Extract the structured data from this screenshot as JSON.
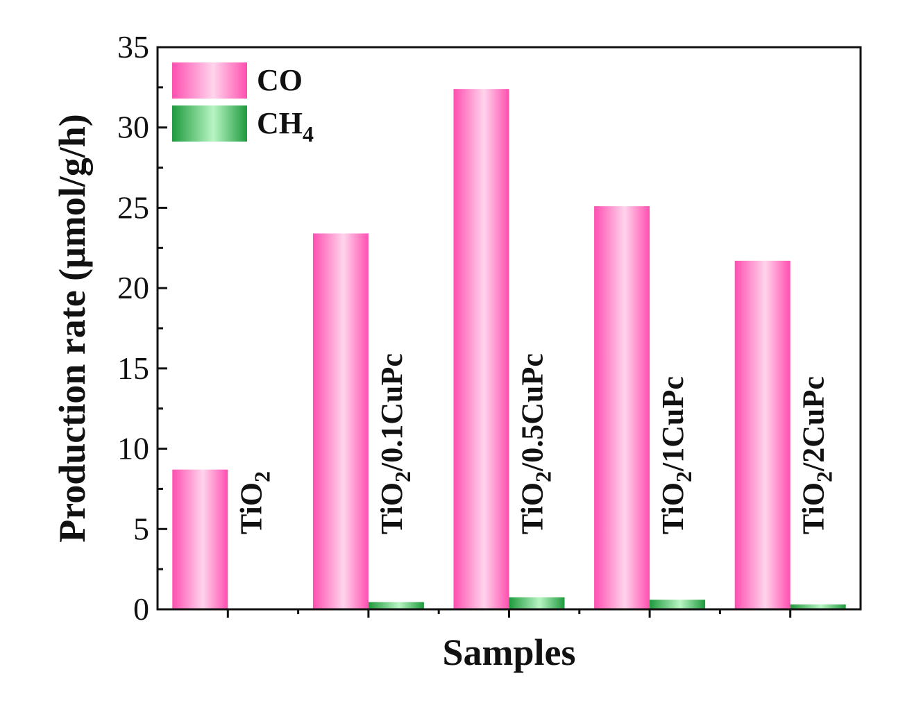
{
  "chart_data": {
    "type": "bar",
    "categories": [
      "TiO2",
      "TiO2/0.1CuPc",
      "TiO2/0.5CuPc",
      "TiO2/1CuPc",
      "TiO2/2CuPc"
    ],
    "category_labels": [
      {
        "main": "TiO",
        "sub": "2",
        "rest": ""
      },
      {
        "main": "TiO",
        "sub": "2",
        "rest": "/0.1CuPc"
      },
      {
        "main": "TiO",
        "sub": "2",
        "rest": "/0.5CuPc"
      },
      {
        "main": "TiO",
        "sub": "2",
        "rest": "/1CuPc"
      },
      {
        "main": "TiO",
        "sub": "2",
        "rest": "/2CuPc"
      }
    ],
    "series": [
      {
        "name": "CO",
        "label_main": "CO",
        "label_sub": "",
        "values": [
          8.7,
          23.4,
          32.4,
          25.1,
          21.7
        ],
        "color": "#ff4fb0",
        "highlight": "#ffd4ec"
      },
      {
        "name": "CH4",
        "label_main": "CH",
        "label_sub": "4",
        "values": [
          0.0,
          0.45,
          0.75,
          0.6,
          0.3
        ],
        "color": "#1e9a3c",
        "highlight": "#b8f5c4"
      }
    ],
    "xlabel": "Samples",
    "ylabel": "Production rate (μmol/g/h)",
    "ylim": [
      0,
      35
    ],
    "yticks": [
      0,
      5,
      10,
      15,
      20,
      25,
      30,
      35
    ],
    "legend_position": "top-left",
    "grid": false
  }
}
